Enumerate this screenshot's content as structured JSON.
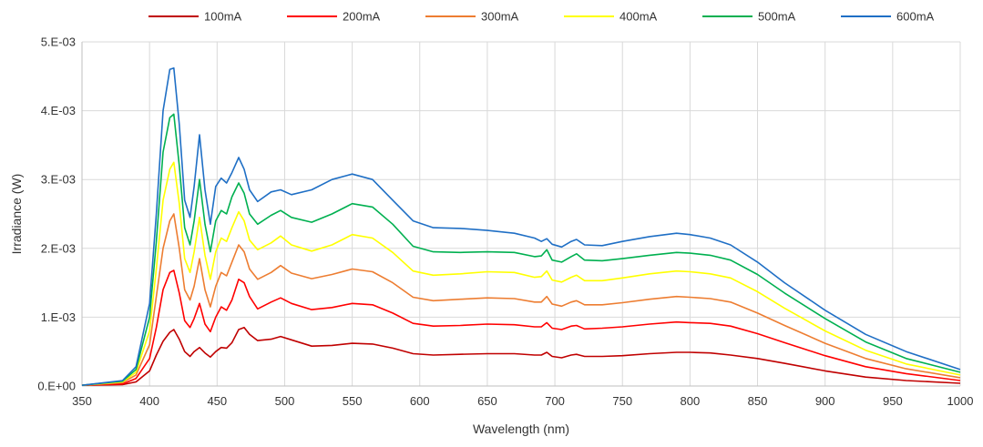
{
  "chart_data": {
    "type": "line",
    "xlabel": "Wavelength (nm)",
    "ylabel": "Irradiance (W)",
    "xlim": [
      350,
      1000
    ],
    "ylim": [
      0,
      0.005
    ],
    "xticks": [
      350,
      400,
      450,
      500,
      550,
      600,
      650,
      700,
      750,
      800,
      850,
      900,
      950,
      1000
    ],
    "xtick_labels": [
      "350",
      "400",
      "450",
      "500",
      "550",
      "600",
      "650",
      "700",
      "750",
      "800",
      "850",
      "900",
      "950",
      "1000"
    ],
    "yticks": [
      0,
      0.001,
      0.002,
      0.003,
      0.004,
      0.005
    ],
    "ytick_labels": [
      "0.E+00",
      "1.E-03",
      "2.E-03",
      "3.E-03",
      "4.E-03",
      "5.E-03"
    ],
    "grid": true,
    "legend_position": "top",
    "x": [
      350,
      380,
      390,
      400,
      405,
      410,
      415,
      418,
      422,
      426,
      430,
      433,
      437,
      441,
      445,
      449,
      453,
      457,
      461,
      466,
      470,
      474,
      480,
      490,
      497,
      505,
      520,
      535,
      550,
      565,
      580,
      595,
      610,
      630,
      650,
      670,
      685,
      690,
      694,
      698,
      705,
      712,
      716,
      722,
      735,
      750,
      770,
      790,
      800,
      815,
      830,
      850,
      870,
      900,
      930,
      960,
      1000
    ],
    "series": [
      {
        "name": "100mA",
        "color": "#C00000",
        "values": [
          1e-05,
          2e-05,
          6e-05,
          0.00022,
          0.00045,
          0.00065,
          0.00078,
          0.00082,
          0.00068,
          0.0005,
          0.00043,
          0.0005,
          0.00056,
          0.00048,
          0.00042,
          0.0005,
          0.00056,
          0.00055,
          0.00063,
          0.00082,
          0.00085,
          0.00075,
          0.00066,
          0.00068,
          0.00072,
          0.00067,
          0.00058,
          0.00059,
          0.00062,
          0.00061,
          0.00055,
          0.00047,
          0.00045,
          0.00046,
          0.00047,
          0.00047,
          0.00045,
          0.00045,
          0.00049,
          0.00043,
          0.00041,
          0.00045,
          0.00046,
          0.00043,
          0.00043,
          0.00044,
          0.00047,
          0.00049,
          0.00049,
          0.00048,
          0.00045,
          0.0004,
          0.00033,
          0.00022,
          0.00013,
          8e-05,
          4e-05
        ]
      },
      {
        "name": "200mA",
        "color": "#FF0000",
        "values": [
          1e-05,
          3e-05,
          0.00011,
          0.0004,
          0.00085,
          0.0014,
          0.00165,
          0.00168,
          0.00135,
          0.00095,
          0.00085,
          0.00098,
          0.0012,
          0.0009,
          0.00079,
          0.001,
          0.00115,
          0.0011,
          0.00125,
          0.00155,
          0.0015,
          0.0013,
          0.00112,
          0.00122,
          0.00128,
          0.0012,
          0.00111,
          0.00114,
          0.0012,
          0.00118,
          0.00106,
          0.00091,
          0.00087,
          0.00088,
          0.0009,
          0.00089,
          0.00086,
          0.00086,
          0.00092,
          0.00084,
          0.00082,
          0.00087,
          0.00088,
          0.00083,
          0.00084,
          0.00086,
          0.0009,
          0.00093,
          0.00092,
          0.00091,
          0.00087,
          0.00076,
          0.00063,
          0.00044,
          0.00028,
          0.00018,
          8e-05
        ]
      },
      {
        "name": "300mA",
        "color": "#ED7D31",
        "values": [
          1e-05,
          5e-05,
          0.00016,
          0.0006,
          0.0013,
          0.002,
          0.0024,
          0.0025,
          0.002,
          0.0014,
          0.00125,
          0.00145,
          0.00185,
          0.0014,
          0.00115,
          0.00145,
          0.00165,
          0.0016,
          0.0018,
          0.00205,
          0.00195,
          0.0017,
          0.00155,
          0.00165,
          0.00175,
          0.00164,
          0.00156,
          0.00162,
          0.0017,
          0.00166,
          0.0015,
          0.00129,
          0.00124,
          0.00126,
          0.00128,
          0.00127,
          0.00122,
          0.00122,
          0.0013,
          0.00119,
          0.00116,
          0.00122,
          0.00124,
          0.00118,
          0.00118,
          0.00121,
          0.00126,
          0.0013,
          0.00129,
          0.00127,
          0.00122,
          0.00106,
          0.00088,
          0.00062,
          0.0004,
          0.00025,
          0.00012
        ]
      },
      {
        "name": "400mA",
        "color": "#FFFF00",
        "values": [
          1e-05,
          6e-05,
          0.0002,
          0.0008,
          0.0017,
          0.0027,
          0.00315,
          0.00325,
          0.00265,
          0.00185,
          0.00165,
          0.00195,
          0.00245,
          0.0019,
          0.00155,
          0.00195,
          0.00215,
          0.0021,
          0.0023,
          0.00253,
          0.0024,
          0.00212,
          0.00198,
          0.00208,
          0.00218,
          0.00205,
          0.00196,
          0.00205,
          0.0022,
          0.00215,
          0.00194,
          0.00167,
          0.00161,
          0.00163,
          0.00166,
          0.00165,
          0.00158,
          0.00159,
          0.00167,
          0.00154,
          0.00151,
          0.00158,
          0.00161,
          0.00153,
          0.00153,
          0.00157,
          0.00163,
          0.00167,
          0.00166,
          0.00163,
          0.00157,
          0.00137,
          0.00113,
          0.0008,
          0.00052,
          0.00032,
          0.00016
        ]
      },
      {
        "name": "500mA",
        "color": "#00B050",
        "values": [
          1e-05,
          7e-05,
          0.00024,
          0.001,
          0.0021,
          0.0034,
          0.0039,
          0.00395,
          0.0032,
          0.0023,
          0.00205,
          0.0024,
          0.003,
          0.00235,
          0.00195,
          0.0024,
          0.00255,
          0.0025,
          0.00275,
          0.00295,
          0.0028,
          0.0025,
          0.00235,
          0.00248,
          0.00255,
          0.00245,
          0.00238,
          0.0025,
          0.00265,
          0.0026,
          0.00235,
          0.00203,
          0.00195,
          0.00194,
          0.00195,
          0.00194,
          0.00188,
          0.00189,
          0.00198,
          0.00183,
          0.0018,
          0.00188,
          0.00192,
          0.00183,
          0.00182,
          0.00185,
          0.0019,
          0.00194,
          0.00193,
          0.0019,
          0.00183,
          0.00162,
          0.00135,
          0.00098,
          0.00064,
          0.0004,
          0.0002
        ]
      },
      {
        "name": "600mA",
        "color": "#1F6FC5",
        "values": [
          1e-05,
          8e-05,
          0.00028,
          0.0012,
          0.0025,
          0.004,
          0.0046,
          0.00462,
          0.0038,
          0.0027,
          0.00245,
          0.0029,
          0.00365,
          0.00285,
          0.00235,
          0.0029,
          0.00302,
          0.00295,
          0.0031,
          0.00332,
          0.00315,
          0.00285,
          0.00268,
          0.00282,
          0.00285,
          0.00278,
          0.00285,
          0.003,
          0.00308,
          0.003,
          0.0027,
          0.0024,
          0.0023,
          0.00229,
          0.00226,
          0.00222,
          0.00215,
          0.0021,
          0.00214,
          0.00206,
          0.00202,
          0.0021,
          0.00213,
          0.00205,
          0.00204,
          0.0021,
          0.00217,
          0.00222,
          0.0022,
          0.00215,
          0.00205,
          0.0018,
          0.0015,
          0.0011,
          0.00075,
          0.0005,
          0.00024
        ]
      }
    ]
  }
}
